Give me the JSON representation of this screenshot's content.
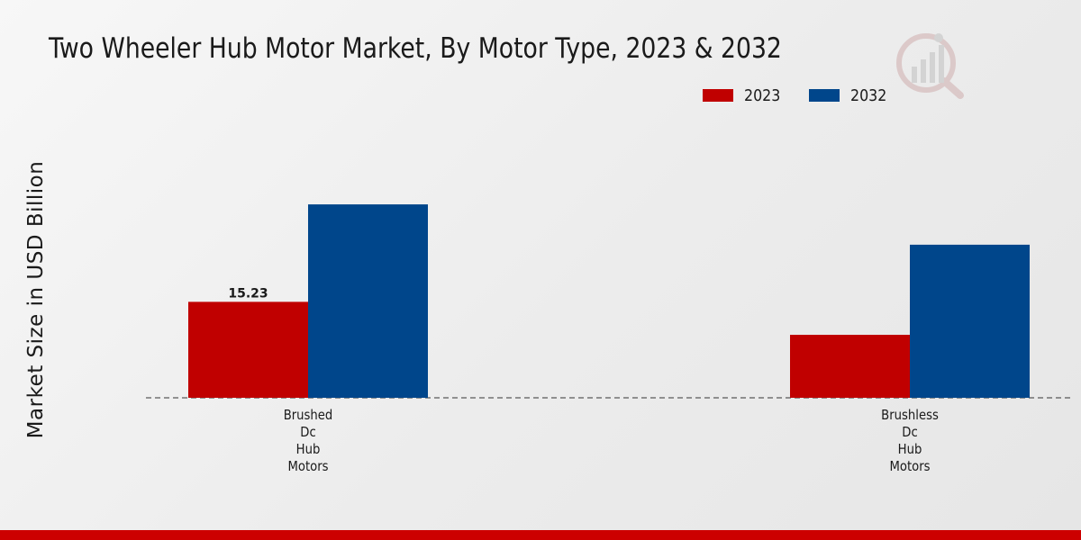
{
  "chart_data": {
    "type": "bar",
    "title": "Two Wheeler Hub Motor Market, By Motor Type, 2023 & 2032",
    "ylabel": "Market Size in USD Billion",
    "xlabel": "",
    "categories": [
      "Brushed\nDc\nHub\nMotors",
      "Brushless\nDc\nHub\nMotors"
    ],
    "series": [
      {
        "name": "2023",
        "color": "#c00000",
        "values": [
          15.23,
          10.0
        ]
      },
      {
        "name": "2032",
        "color": "#00468b",
        "values": [
          30.7,
          24.3
        ]
      }
    ],
    "data_labels": [
      {
        "series": 0,
        "index": 0,
        "text": "15.23"
      }
    ],
    "ylim": [
      0,
      40
    ],
    "legend_position": "top-right",
    "grid": false
  }
}
